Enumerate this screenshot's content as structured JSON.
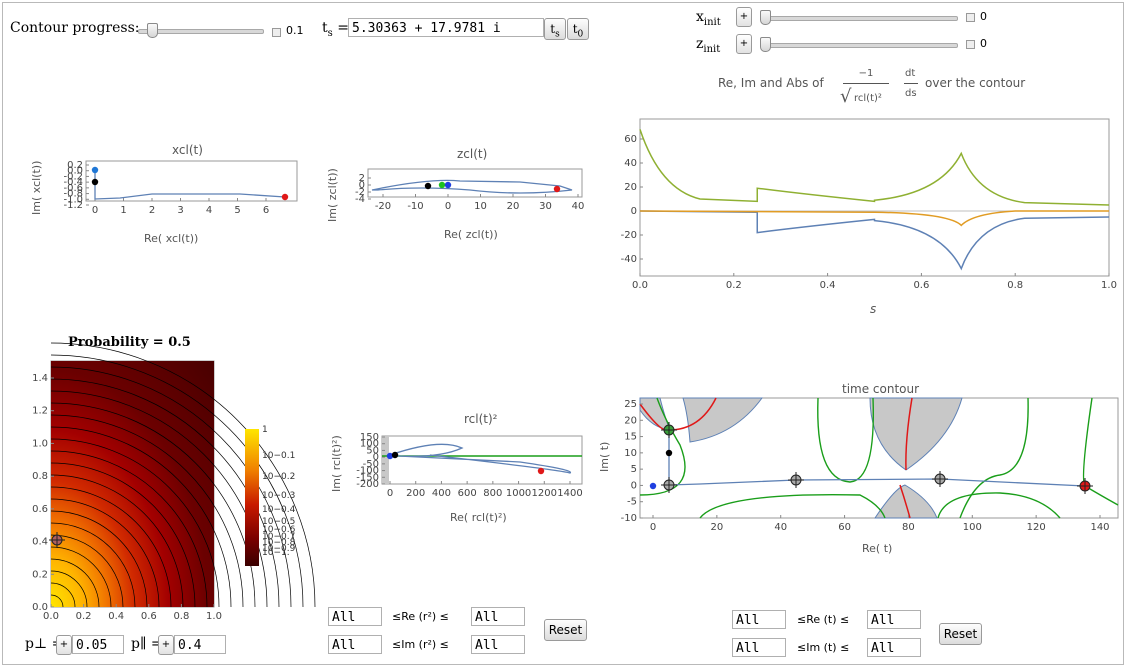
{
  "controls": {
    "contour_progress": {
      "label": "Contour progress:",
      "value": "0.1",
      "fraction": 0.1
    },
    "ts": {
      "label_main": "t",
      "label_sub": "s",
      "label_eq": "=",
      "value": "5.30363 + 17.9781 i",
      "btn_ts": "ts",
      "btn_t0": "t0"
    },
    "xinit": {
      "label_main": "x",
      "label_sub": "init",
      "plus": "+",
      "value": "0",
      "fraction": 0
    },
    "zinit": {
      "label_main": "z",
      "label_sub": "init",
      "plus": "+",
      "value": "0",
      "fraction": 0
    }
  },
  "plot_xcl": {
    "title": "xcl(t)",
    "xlabel": "Re( xcl(t))",
    "ylabel": "Im( xcl(t))",
    "xticks": [
      "0",
      "1",
      "2",
      "3",
      "4",
      "5",
      "6"
    ],
    "yticks": [
      "0.2",
      "0.0",
      "-0.2",
      "-0.4",
      "-0.6",
      "-0.8",
      "-1.0",
      "-1.2"
    ]
  },
  "plot_zcl": {
    "title": "zcl(t)",
    "xlabel": "Re( zcl(t))",
    "ylabel": "Im( zcl(t))",
    "xticks": [
      "-20",
      "-10",
      "0",
      "10",
      "20",
      "30",
      "40"
    ],
    "yticks": [
      "2",
      "0",
      "-2",
      "-4"
    ]
  },
  "plot_rcl": {
    "title": "rcl(t)²",
    "xlabel": "Re( rcl(t)²)",
    "ylabel": "Im( rcl(t)²)",
    "xticks": [
      "0",
      "200",
      "400",
      "600",
      "800",
      "1000",
      "1200",
      "1400"
    ],
    "yticks": [
      "150",
      "100",
      "50",
      "0",
      "-50",
      "-100",
      "-150",
      "-200"
    ]
  },
  "plot_integrand": {
    "title_pre": "Re, Im and Abs of",
    "title_post": "over the contour",
    "frac_num": "−1",
    "frac_den": "rcl(t)²",
    "dt": "dt",
    "ds": "ds",
    "xlabel": "s",
    "xticks": [
      "0.0",
      "0.2",
      "0.4",
      "0.6",
      "0.8",
      "1.0"
    ],
    "yticks": [
      "60",
      "40",
      "20",
      "0",
      "-20",
      "-40"
    ]
  },
  "plot_probability": {
    "title": "Probability = 0.5",
    "xticks": [
      "0.0",
      "0.2",
      "0.4",
      "0.6",
      "0.8",
      "1.0"
    ],
    "yticks": [
      "1.4",
      "1.2",
      "1.0",
      "0.8",
      "0.6",
      "0.4",
      "0.2",
      "0.0"
    ],
    "legend": [
      "1",
      "10−0.1",
      "10−0.2",
      "10−0.3",
      "10−0.4",
      "10−0.5",
      "10−0.6",
      "10−0.7",
      "10−0.8",
      "10−0.9",
      "10−1."
    ],
    "p_perp": {
      "label": "p⊥ =",
      "plus": "+",
      "value": "0.05"
    },
    "p_par": {
      "label": "p∥ =",
      "plus": "+",
      "value": "0.4"
    }
  },
  "plot_time_contour": {
    "title": "time contour",
    "xlabel": "Re( t)",
    "ylabel": "Im( t)",
    "xticks": [
      "0",
      "20",
      "40",
      "60",
      "80",
      "100",
      "120",
      "140"
    ],
    "yticks": [
      "25",
      "20",
      "15",
      "10",
      "5",
      "0",
      "-5",
      "-10"
    ]
  },
  "range_r2": {
    "re_min": "All",
    "re_label": "≤Re (r²) ≤",
    "re_max": "All",
    "im_min": "All",
    "im_label": "≤Im (r²) ≤",
    "im_max": "All",
    "reset": "Reset"
  },
  "range_t": {
    "re_min": "All",
    "re_label": "≤Re (t) ≤",
    "re_max": "All",
    "im_min": "All",
    "im_label": "≤Im (t) ≤",
    "im_max": "All",
    "reset": "Reset"
  },
  "colors": {
    "blue_curve": "#5e81b5",
    "green_curve": "#8fb032",
    "orange_curve": "#e19c24",
    "contour_green": "#1a9e1a",
    "contour_red": "#e01818",
    "shade": "#c8c8c8"
  }
}
